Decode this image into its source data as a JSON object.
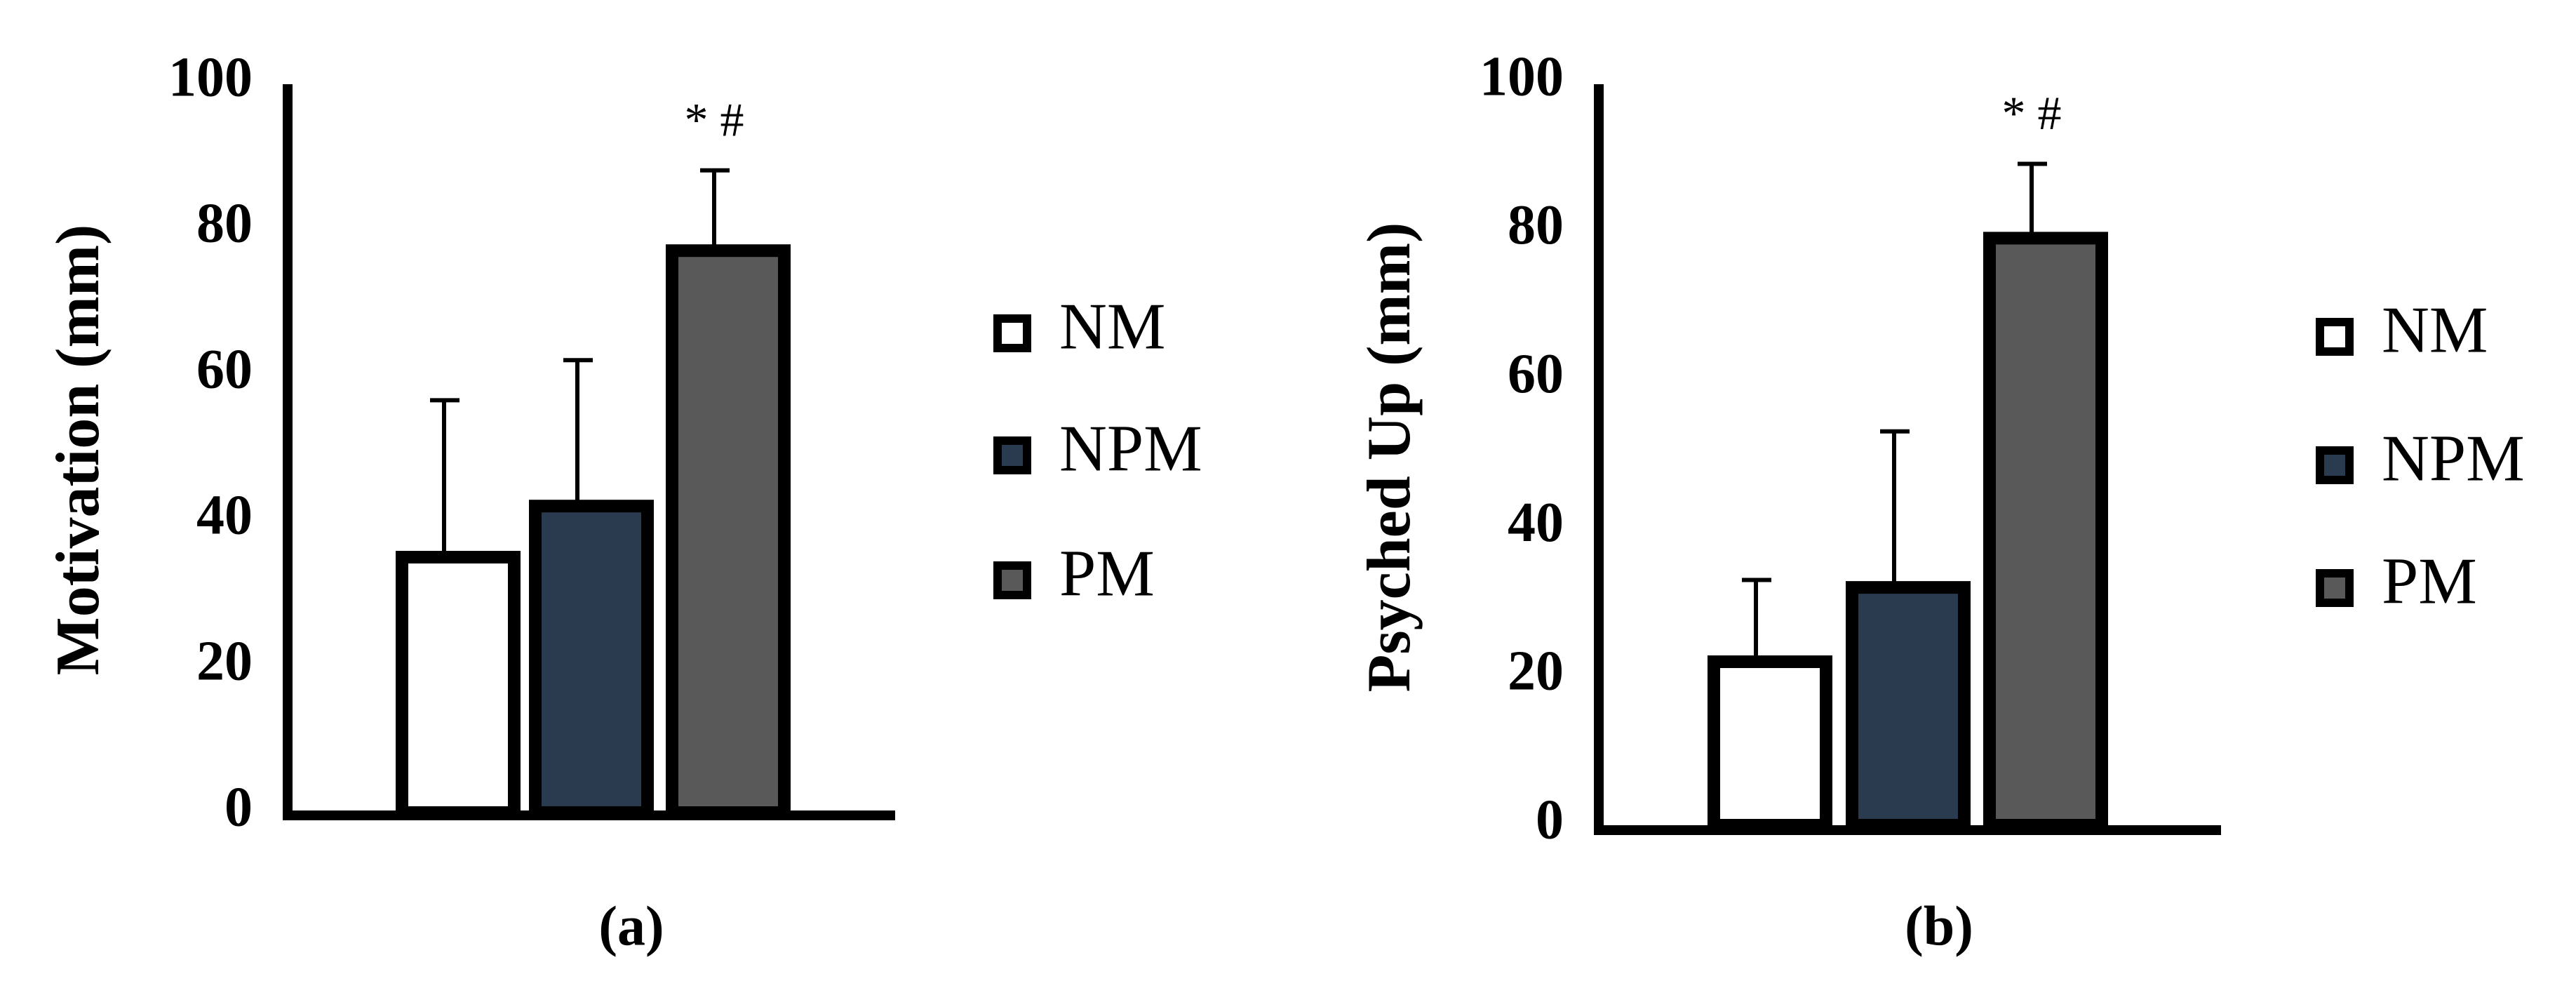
{
  "chart_data": [
    {
      "type": "bar",
      "ylabel": "Motivation (mm)",
      "caption": "(a)",
      "categories": [
        "NM",
        "NPM",
        "PM"
      ],
      "values": [
        35,
        42,
        77
      ],
      "errors": [
        21.5,
        20,
        11
      ],
      "colors": [
        "#ffffff",
        "#2a3b50",
        "#595959"
      ],
      "annotation": "* #",
      "ylim": [
        0,
        100
      ],
      "yticks": [
        0,
        20,
        40,
        60,
        80,
        100
      ]
    },
    {
      "type": "bar",
      "ylabel": "Psyched Up (mm)",
      "caption": "(b)",
      "categories": [
        "NM",
        "NPM",
        "PM"
      ],
      "values": [
        22,
        32,
        79
      ],
      "errors": [
        11,
        21,
        10
      ],
      "colors": [
        "#ffffff",
        "#2a3b50",
        "#595959"
      ],
      "annotation": "* #",
      "ylim": [
        0,
        100
      ],
      "yticks": [
        0,
        20,
        40,
        60,
        80,
        100
      ]
    }
  ]
}
